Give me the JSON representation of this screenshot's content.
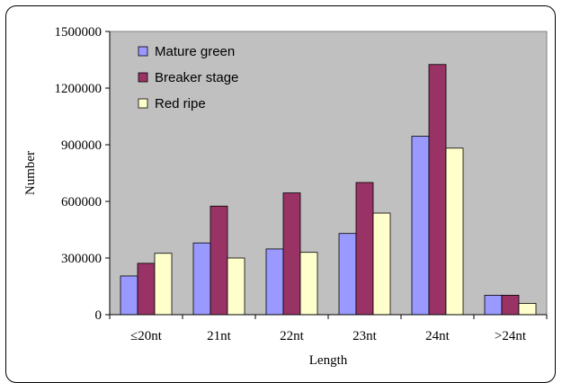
{
  "chart_data": {
    "type": "bar",
    "title": "",
    "xlabel": "Length",
    "ylabel": "Number",
    "ylim": [
      0,
      1500000
    ],
    "yticks": [
      0,
      300000,
      600000,
      900000,
      1200000,
      1500000
    ],
    "ytick_labels": [
      "0",
      "300000",
      "600000",
      "900000",
      "1200000",
      "1500000"
    ],
    "categories": [
      "≤20nt",
      "21nt",
      "22nt",
      "23nt",
      "24nt",
      ">24nt"
    ],
    "grid": false,
    "legend_position": "top-left",
    "plot_background": "#c0c0c0",
    "series": [
      {
        "name": "Mature green",
        "color": "#9999ff",
        "values": [
          205000,
          380000,
          348000,
          430000,
          945000,
          103000
        ]
      },
      {
        "name": "Breaker stage",
        "color": "#993366",
        "values": [
          272000,
          575000,
          645000,
          700000,
          1325000,
          103000
        ]
      },
      {
        "name": "Red  ripe",
        "color": "#ffffcc",
        "values": [
          325000,
          300000,
          330000,
          538000,
          882000,
          60000
        ]
      }
    ]
  }
}
